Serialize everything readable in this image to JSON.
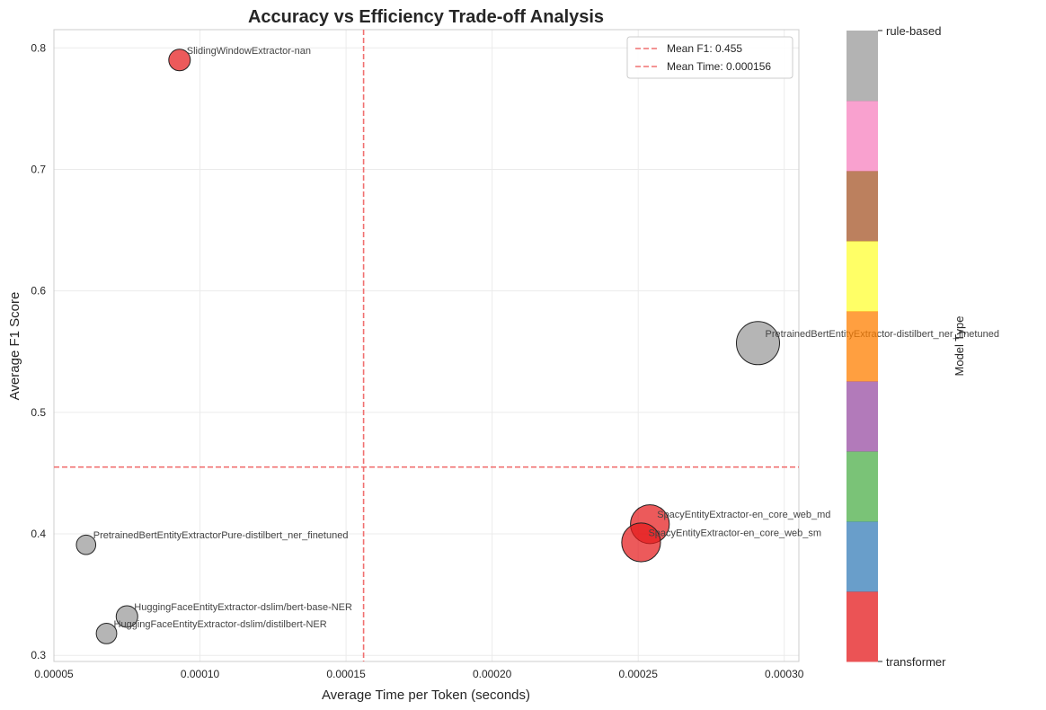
{
  "chart_data": {
    "type": "scatter",
    "title": "Accuracy vs Efficiency Trade-off Analysis",
    "xlabel": "Average Time per Token (seconds)",
    "ylabel": "Average F1 Score",
    "xlim": [
      5e-05,
      0.000305
    ],
    "ylim": [
      0.295,
      0.815
    ],
    "xticks": [
      {
        "value": 5e-05,
        "label": "0.00005"
      },
      {
        "value": 0.0001,
        "label": "0.00010"
      },
      {
        "value": 0.00015,
        "label": "0.00015"
      },
      {
        "value": 0.0002,
        "label": "0.00020"
      },
      {
        "value": 0.00025,
        "label": "0.00025"
      },
      {
        "value": 0.0003,
        "label": "0.00030"
      }
    ],
    "yticks": [
      {
        "value": 0.3,
        "label": "0.3"
      },
      {
        "value": 0.4,
        "label": "0.4"
      },
      {
        "value": 0.5,
        "label": "0.5"
      },
      {
        "value": 0.6,
        "label": "0.6"
      },
      {
        "value": 0.7,
        "label": "0.7"
      },
      {
        "value": 0.8,
        "label": "0.8"
      }
    ],
    "grid": true,
    "points": [
      {
        "label": "SlidingWindowExtractor-nan",
        "x": 9.3e-05,
        "y": 0.79,
        "size": 1.0,
        "type": "transformer",
        "color": "#e41a1c"
      },
      {
        "label": "PretrainedBertEntityExtractor-distilbert_ner_finetuned",
        "x": 0.000291,
        "y": 0.557,
        "size": 2.0,
        "type": "rule-based",
        "color": "#999999"
      },
      {
        "label": "SpacyEntityExtractor-en_core_web_md",
        "x": 0.000254,
        "y": 0.408,
        "size": 1.8,
        "type": "transformer",
        "color": "#e41a1c"
      },
      {
        "label": "SpacyEntityExtractor-en_core_web_sm",
        "x": 0.000251,
        "y": 0.393,
        "size": 1.8,
        "type": "transformer",
        "color": "#e41a1c"
      },
      {
        "label": "PretrainedBertEntityExtractorPure-distilbert_ner_finetuned",
        "x": 6.1e-05,
        "y": 0.391,
        "size": 0.9,
        "type": "rule-based",
        "color": "#999999"
      },
      {
        "label": "HuggingFaceEntityExtractor-dslim/bert-base-NER",
        "x": 7.5e-05,
        "y": 0.332,
        "size": 1.0,
        "type": "rule-based",
        "color": "#999999"
      },
      {
        "label": "HuggingFaceEntityExtractor-dslim/distilbert-NER",
        "x": 6.8e-05,
        "y": 0.318,
        "size": 0.95,
        "type": "rule-based",
        "color": "#999999"
      }
    ],
    "reference_lines": [
      {
        "orientation": "horizontal",
        "value": 0.455,
        "label": "Mean F1: 0.455",
        "color": "#f07070"
      },
      {
        "orientation": "vertical",
        "value": 0.000156,
        "label": "Mean Time: 0.000156",
        "color": "#f07070"
      }
    ],
    "legend_position": "top-right",
    "colorbar": {
      "label": "Model Type",
      "tick_top": "rule-based",
      "tick_bottom": "transformer",
      "colors": [
        "#e41a1c",
        "#377eb8",
        "#4daf4a",
        "#984ea3",
        "#ff7f00",
        "#ffff33",
        "#a65628",
        "#f781bf",
        "#999999"
      ]
    }
  }
}
